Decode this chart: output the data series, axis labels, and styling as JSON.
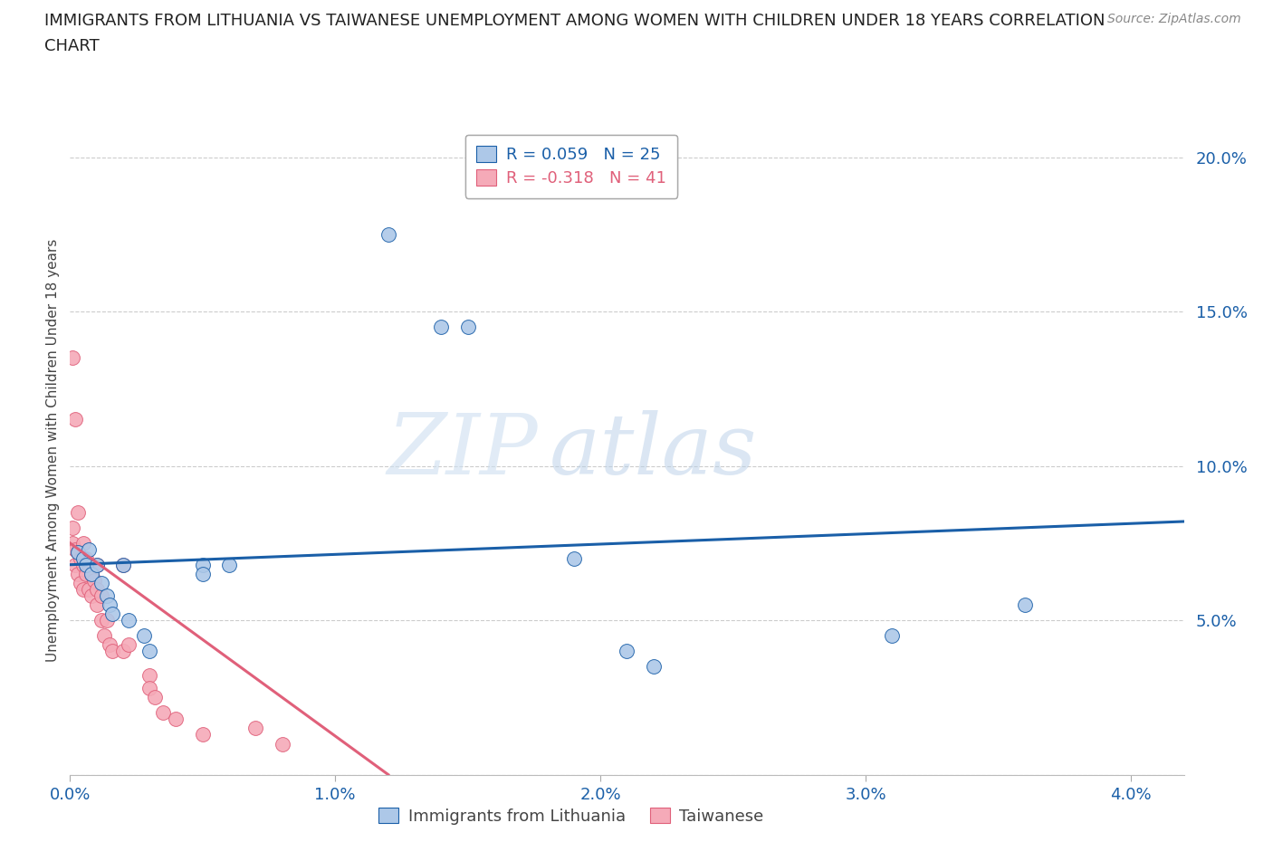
{
  "title_line1": "IMMIGRANTS FROM LITHUANIA VS TAIWANESE UNEMPLOYMENT AMONG WOMEN WITH CHILDREN UNDER 18 YEARS CORRELATION",
  "title_line2": "CHART",
  "source": "Source: ZipAtlas.com",
  "ylabel": "Unemployment Among Women with Children Under 18 years",
  "xlabel_blue": "Immigrants from Lithuania",
  "xlabel_pink": "Taiwanese",
  "xlim": [
    0.0,
    0.042
  ],
  "ylim": [
    0.0,
    0.21
  ],
  "yticks": [
    0.0,
    0.05,
    0.1,
    0.15,
    0.2
  ],
  "ytick_labels": [
    "",
    "5.0%",
    "10.0%",
    "15.0%",
    "20.0%"
  ],
  "xticks": [
    0.0,
    0.01,
    0.02,
    0.03,
    0.04
  ],
  "xtick_labels": [
    "0.0%",
    "1.0%",
    "2.0%",
    "3.0%",
    "4.0%"
  ],
  "blue_R": 0.059,
  "blue_N": 25,
  "pink_R": -0.318,
  "pink_N": 41,
  "blue_color": "#adc8e8",
  "blue_line_color": "#1a5fa8",
  "pink_color": "#f5aab8",
  "pink_line_color": "#e0607a",
  "blue_dots_x": [
    0.0003,
    0.0005,
    0.0006,
    0.0007,
    0.0008,
    0.001,
    0.0012,
    0.0014,
    0.0015,
    0.0016,
    0.002,
    0.0022,
    0.0028,
    0.003,
    0.005,
    0.005,
    0.006,
    0.012,
    0.014,
    0.015,
    0.019,
    0.021,
    0.022,
    0.031,
    0.036
  ],
  "blue_dots_y": [
    0.072,
    0.07,
    0.068,
    0.073,
    0.065,
    0.068,
    0.062,
    0.058,
    0.055,
    0.052,
    0.068,
    0.05,
    0.045,
    0.04,
    0.068,
    0.065,
    0.068,
    0.175,
    0.145,
    0.145,
    0.07,
    0.04,
    0.035,
    0.045,
    0.055
  ],
  "pink_dots_x": [
    0.0001,
    0.0001,
    0.0002,
    0.0002,
    0.0003,
    0.0003,
    0.0004,
    0.0004,
    0.0005,
    0.0005,
    0.0005,
    0.0006,
    0.0006,
    0.0007,
    0.0007,
    0.0008,
    0.0008,
    0.0009,
    0.001,
    0.001,
    0.001,
    0.0012,
    0.0012,
    0.0013,
    0.0014,
    0.0015,
    0.0016,
    0.002,
    0.002,
    0.0022,
    0.003,
    0.003,
    0.0032,
    0.0035,
    0.004,
    0.005,
    0.007,
    0.008,
    0.0001,
    0.0002,
    0.0003
  ],
  "pink_dots_y": [
    0.08,
    0.075,
    0.073,
    0.068,
    0.072,
    0.065,
    0.07,
    0.062,
    0.075,
    0.068,
    0.06,
    0.07,
    0.065,
    0.068,
    0.06,
    0.065,
    0.058,
    0.063,
    0.068,
    0.06,
    0.055,
    0.058,
    0.05,
    0.045,
    0.05,
    0.042,
    0.04,
    0.068,
    0.04,
    0.042,
    0.032,
    0.028,
    0.025,
    0.02,
    0.018,
    0.013,
    0.015,
    0.01,
    0.135,
    0.115,
    0.085
  ],
  "watermark_zip": "ZIP",
  "watermark_atlas": "atlas",
  "background_color": "#ffffff",
  "grid_color": "#cccccc",
  "blue_trendline_x": [
    0.0,
    0.042
  ],
  "blue_trendline_y": [
    0.068,
    0.082
  ],
  "pink_trendline_x": [
    0.0,
    0.012
  ],
  "pink_trendline_y": [
    0.075,
    0.0
  ]
}
